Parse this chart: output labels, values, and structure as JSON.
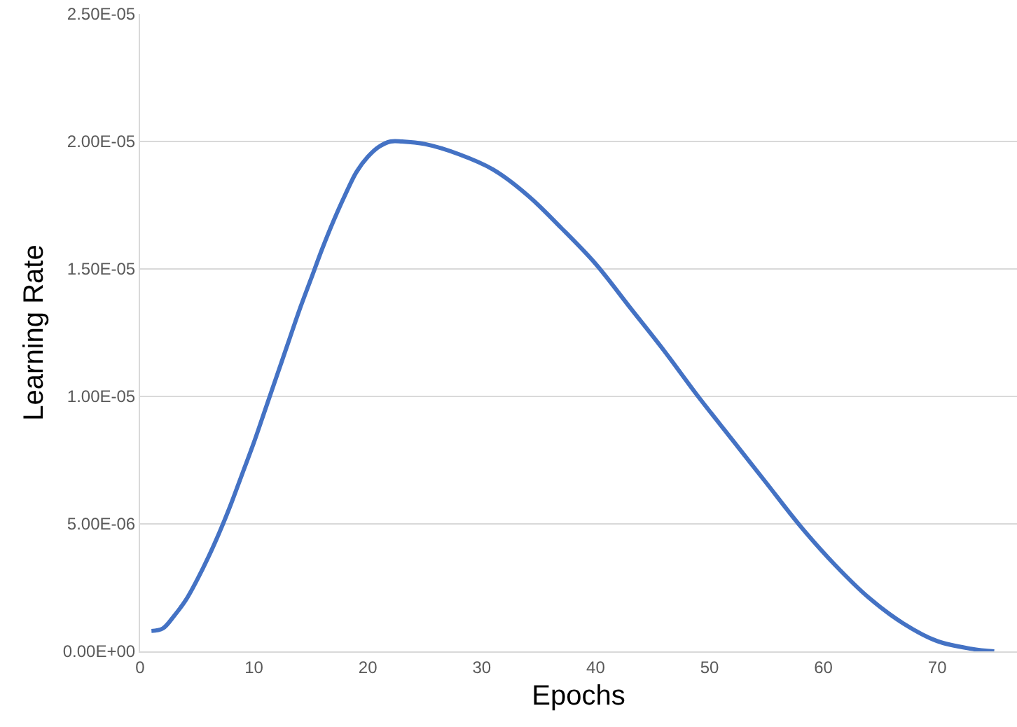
{
  "chart_data": {
    "type": "line",
    "xlabel": "Epochs",
    "ylabel": "Learning Rate",
    "x": [
      1,
      2,
      3,
      4,
      5,
      6,
      7,
      8,
      9,
      10,
      11,
      12,
      13,
      14,
      15,
      16,
      17,
      18,
      19,
      20,
      21,
      22,
      23,
      25,
      28,
      31,
      34,
      37,
      40,
      43,
      46,
      49,
      52,
      55,
      58,
      61,
      64,
      67,
      70,
      73,
      75
    ],
    "series": [
      {
        "color": "#4472c4",
        "values": [
          8e-07,
          9e-07,
          1.4e-06,
          2e-06,
          2.8e-06,
          3.7e-06,
          4.7e-06,
          5.8e-06,
          7e-06,
          8.2e-06,
          9.5e-06,
          1.08e-05,
          1.21e-05,
          1.34e-05,
          1.46e-05,
          1.58e-05,
          1.69e-05,
          1.79e-05,
          1.88e-05,
          1.94e-05,
          1.98e-05,
          2e-05,
          2e-05,
          1.99e-05,
          1.95e-05,
          1.89e-05,
          1.79e-05,
          1.66e-05,
          1.52e-05,
          1.35e-05,
          1.18e-05,
          1e-05,
          8.3e-06,
          6.6e-06,
          4.9e-06,
          3.4e-06,
          2.1e-06,
          1.1e-06,
          4e-07,
          1e-07,
          0
        ]
      }
    ],
    "xlim": [
      0,
      77
    ],
    "xticks": [
      0,
      10,
      20,
      30,
      40,
      50,
      60,
      70
    ],
    "ylim": [
      0,
      2.5e-05
    ],
    "yticks": [
      {
        "value": 0,
        "label": "0.00E+00"
      },
      {
        "value": 5e-06,
        "label": "5.00E-06"
      },
      {
        "value": 1e-05,
        "label": "1.00E-05"
      },
      {
        "value": 1.5e-05,
        "label": "1.50E-05"
      },
      {
        "value": 2e-05,
        "label": "2.00E-05"
      },
      {
        "value": 2.5e-05,
        "label": "2.50E-05"
      }
    ],
    "grid": "y",
    "marker": "none",
    "line_style": "solid"
  }
}
